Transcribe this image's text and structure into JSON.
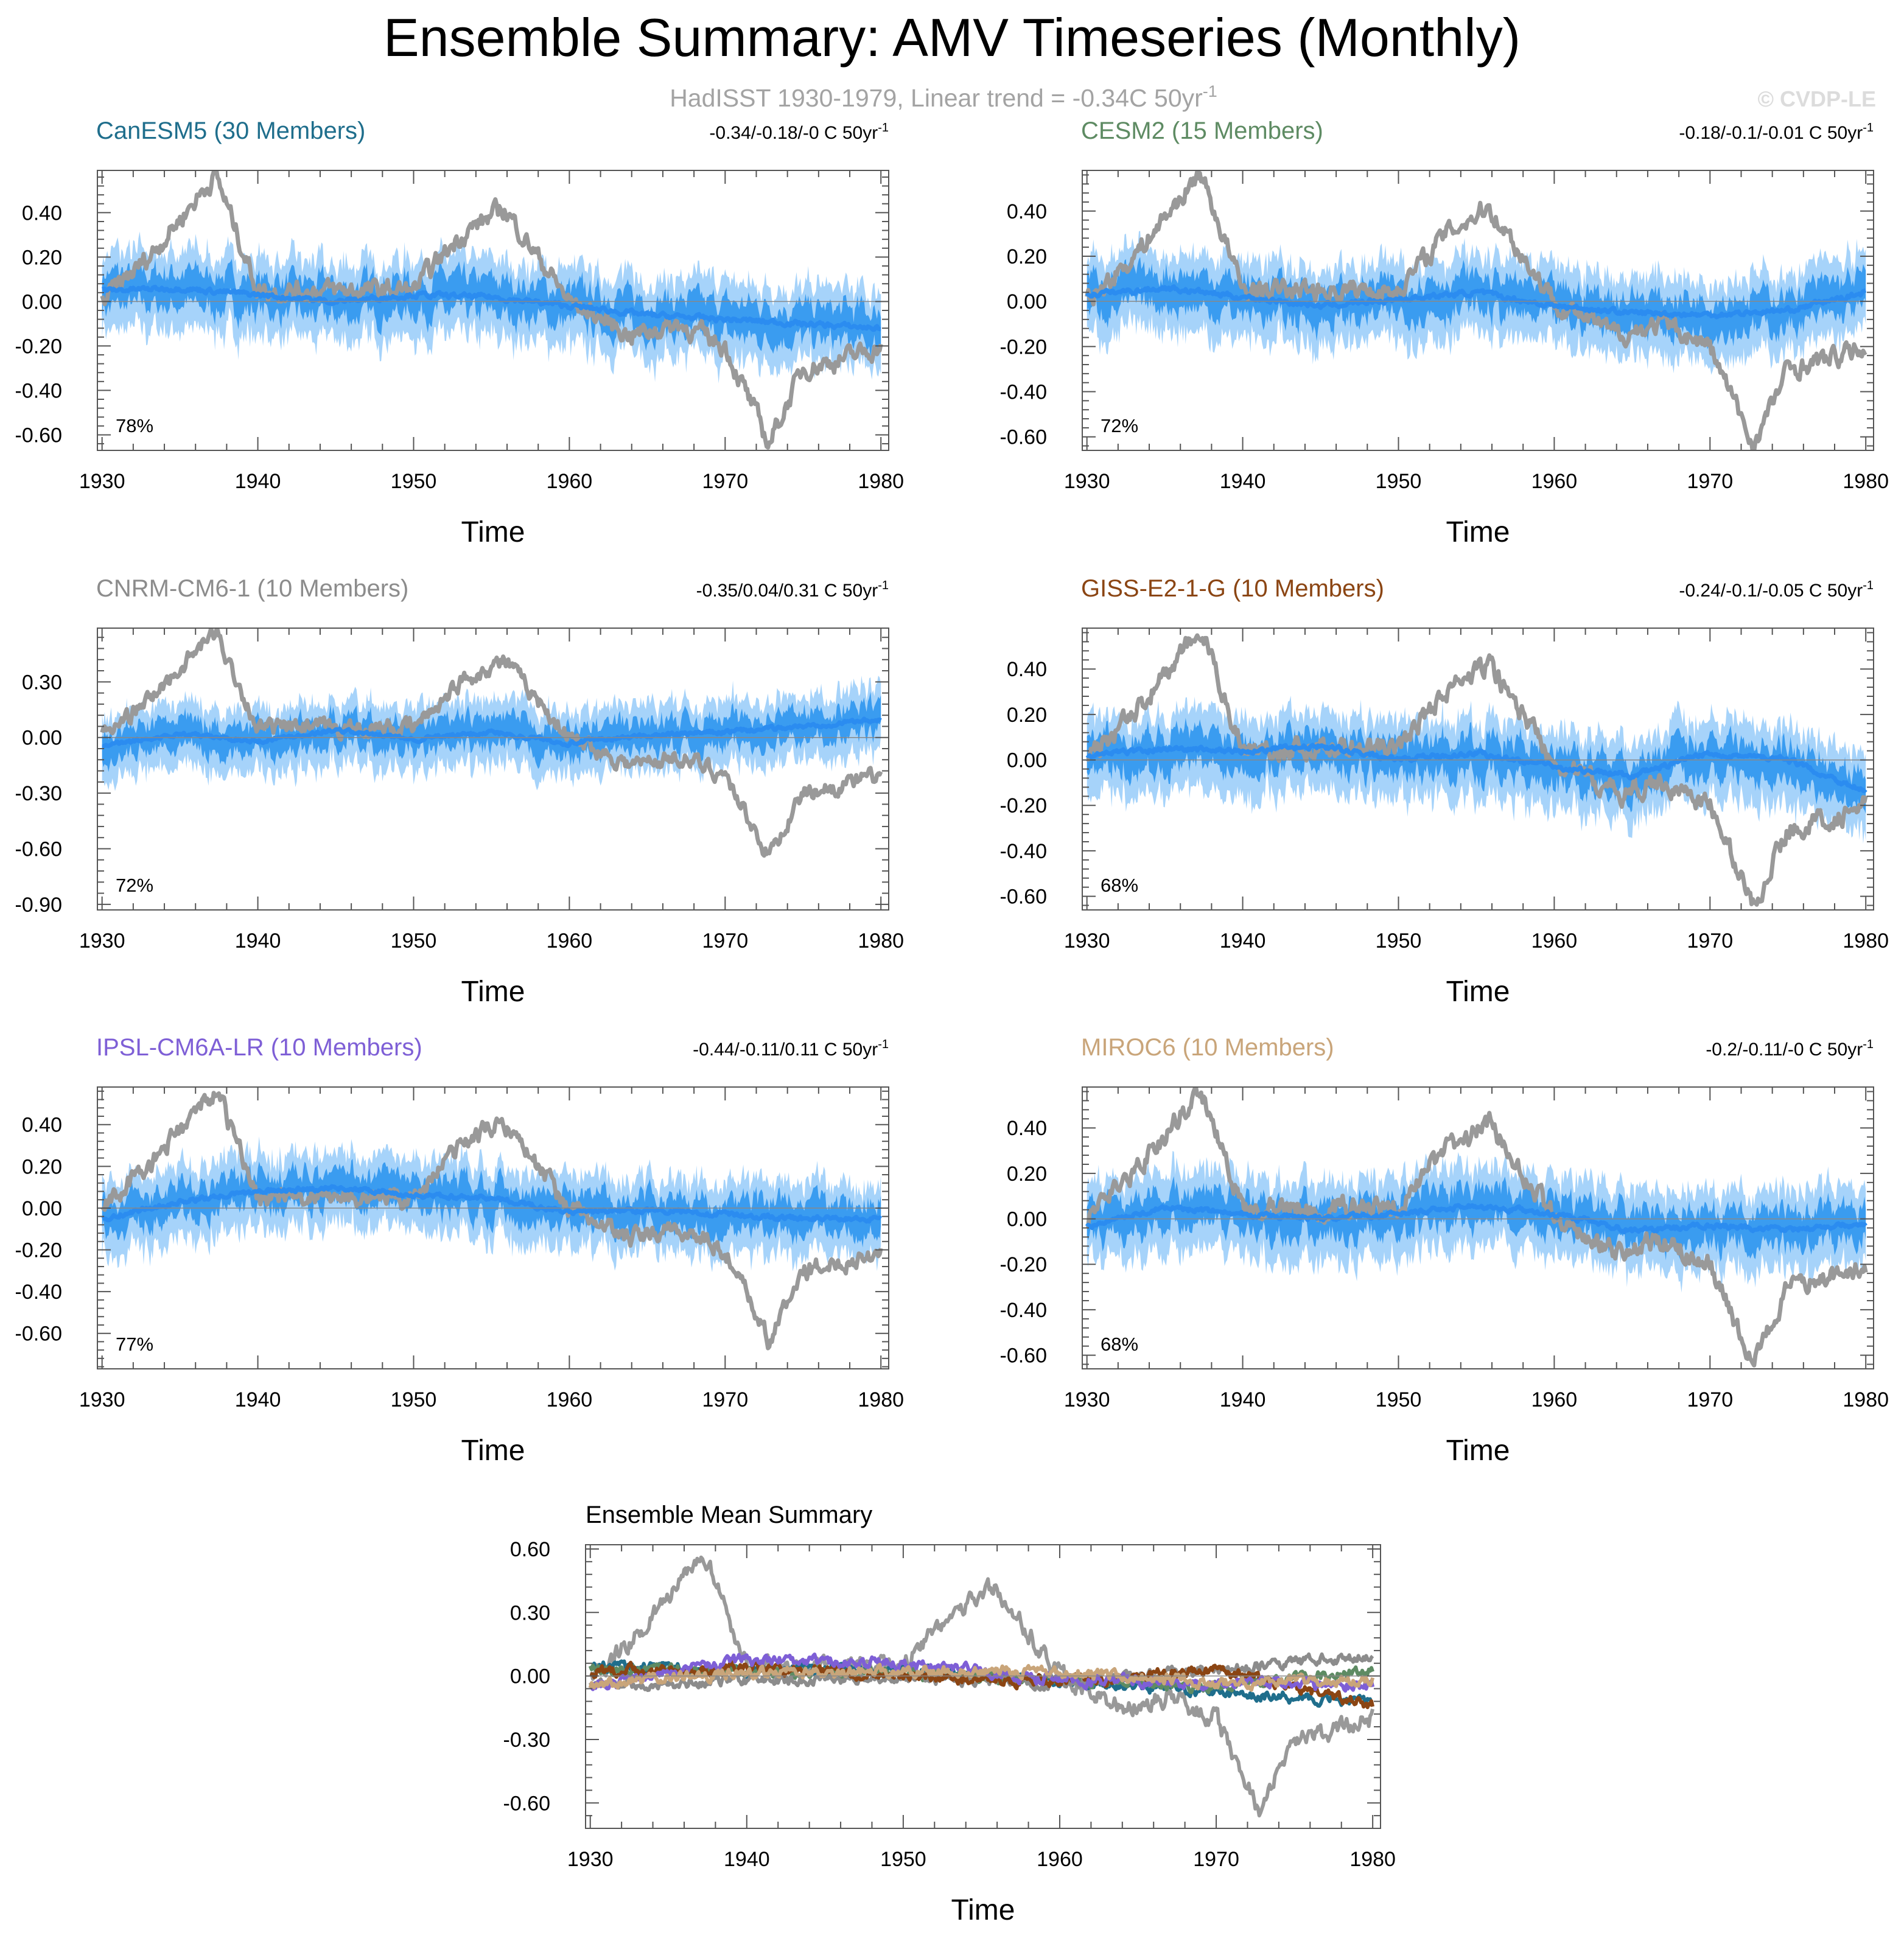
{
  "page": {
    "title": "Ensemble Summary: AMV Timeseries (Monthly)",
    "subtitle_main": "HadISST 1930-1979, Linear trend = -0.34C 50yr",
    "subtitle_sup": "-1",
    "watermark": "© CVDP-LE"
  },
  "colors": {
    "observed": "#999999",
    "band_outer": "#a6d3fa",
    "band_inner": "#3a9cf0",
    "ens_mean": "#2b8cf0",
    "zero_line": "#888888"
  },
  "chart_data": [
    {
      "type": "line",
      "title": "CanESM5 (30 Members)",
      "title_color": "#1f6e8c",
      "trend_text": "-0.34/-0.18/-0 C 50yr",
      "trend_sup": "-1",
      "pct_text": "78%",
      "xlabel": "Time",
      "ylabel": "",
      "xlim": [
        1929.7,
        1980.5
      ],
      "ylim": [
        -0.67,
        0.59
      ],
      "xticks": [
        1930,
        1940,
        1950,
        1960,
        1970,
        1980
      ],
      "yticks": [
        -0.6,
        -0.4,
        -0.2,
        0.0,
        0.2,
        0.4
      ],
      "ytick_labels": [
        "-0.60",
        "-0.40",
        "-0.20",
        "0.00",
        "0.20",
        "0.40"
      ],
      "series": [
        {
          "name": "ensemble mean",
          "x": [
            1930,
            1935,
            1940,
            1945,
            1950,
            1955,
            1960,
            1965,
            1970,
            1975,
            1980
          ],
          "values": [
            0.05,
            0.06,
            0.03,
            0.0,
            0.03,
            0.02,
            -0.02,
            -0.06,
            -0.08,
            -0.1,
            -0.12
          ]
        },
        {
          "name": "observed HadISST",
          "x": [
            1930,
            1933,
            1937.3,
            1940,
            1945,
            1950,
            1953,
            1955.8,
            1960,
            1964,
            1967,
            1970,
            1972.8,
            1975,
            1978,
            1980
          ],
          "values": [
            0.0,
            0.2,
            0.57,
            0.05,
            0.05,
            0.05,
            0.3,
            0.42,
            0.0,
            -0.15,
            -0.1,
            -0.2,
            -0.64,
            -0.3,
            -0.25,
            -0.2
          ]
        }
      ]
    },
    {
      "type": "line",
      "title": "CESM2 (15 Members)",
      "title_color": "#5e8b63",
      "trend_text": "-0.18/-0.1/-0.01 C 50yr",
      "trend_sup": "-1",
      "pct_text": "72%",
      "xlabel": "Time",
      "ylabel": "",
      "xlim": [
        1929.7,
        1980.5
      ],
      "ylim": [
        -0.66,
        0.58
      ],
      "xticks": [
        1930,
        1940,
        1950,
        1960,
        1970,
        1980
      ],
      "yticks": [
        -0.6,
        -0.4,
        -0.2,
        0.0,
        0.2,
        0.4
      ],
      "ytick_labels": [
        "-0.60",
        "-0.40",
        "-0.20",
        "0.00",
        "0.20",
        "0.40"
      ],
      "series": [
        {
          "name": "ensemble mean",
          "x": [
            1930,
            1935,
            1940,
            1945,
            1950,
            1955,
            1960,
            1965,
            1970,
            1975,
            1980
          ],
          "values": [
            0.03,
            0.06,
            0.02,
            -0.02,
            0.01,
            0.04,
            -0.02,
            -0.05,
            -0.06,
            -0.04,
            0.04
          ]
        },
        {
          "name": "observed HadISST",
          "x": [
            1930,
            1933,
            1937.3,
            1940,
            1945,
            1950,
            1953,
            1955.8,
            1960,
            1964,
            1967,
            1970,
            1972.8,
            1975,
            1978,
            1980
          ],
          "values": [
            0.0,
            0.2,
            0.57,
            0.05,
            0.05,
            0.05,
            0.3,
            0.42,
            0.0,
            -0.15,
            -0.1,
            -0.2,
            -0.64,
            -0.3,
            -0.25,
            -0.2
          ]
        }
      ]
    },
    {
      "type": "line",
      "title": "CNRM-CM6-1 (10 Members)",
      "title_color": "#8c8c8c",
      "trend_text": "-0.35/0.04/0.31 C 50yr",
      "trend_sup": "-1",
      "pct_text": "72%",
      "xlabel": "Time",
      "ylabel": "",
      "xlim": [
        1929.7,
        1980.5
      ],
      "ylim": [
        -0.93,
        0.59
      ],
      "xticks": [
        1930,
        1940,
        1950,
        1960,
        1970,
        1980
      ],
      "yticks": [
        -0.9,
        -0.6,
        -0.3,
        0.0,
        0.3
      ],
      "ytick_labels": [
        "-0.90",
        "-0.60",
        "-0.30",
        "0.00",
        "0.30"
      ],
      "series": [
        {
          "name": "ensemble mean",
          "x": [
            1930,
            1935,
            1940,
            1945,
            1950,
            1955,
            1960,
            1965,
            1970,
            1975,
            1980
          ],
          "values": [
            -0.05,
            0.02,
            -0.02,
            0.04,
            -0.01,
            0.03,
            -0.03,
            0.01,
            0.03,
            0.06,
            0.1
          ]
        },
        {
          "name": "observed HadISST",
          "x": [
            1930,
            1933,
            1937.3,
            1940,
            1945,
            1950,
            1953,
            1955.8,
            1960,
            1964,
            1967,
            1970,
            1972.8,
            1975,
            1978,
            1980
          ],
          "values": [
            0.0,
            0.2,
            0.57,
            0.05,
            0.05,
            0.05,
            0.3,
            0.42,
            0.0,
            -0.15,
            -0.1,
            -0.2,
            -0.64,
            -0.3,
            -0.25,
            -0.2
          ]
        }
      ]
    },
    {
      "type": "line",
      "title": "GISS-E2-1-G (10 Members)",
      "title_color": "#8b4513",
      "trend_text": "-0.24/-0.1/-0.05 C 50yr",
      "trend_sup": "-1",
      "pct_text": "68%",
      "xlabel": "Time",
      "ylabel": "",
      "xlim": [
        1929.7,
        1980.5
      ],
      "ylim": [
        -0.66,
        0.58
      ],
      "xticks": [
        1930,
        1940,
        1950,
        1960,
        1970,
        1980
      ],
      "yticks": [
        -0.6,
        -0.4,
        -0.2,
        0.0,
        0.2,
        0.4
      ],
      "ytick_labels": [
        "-0.60",
        "-0.40",
        "-0.20",
        "0.00",
        "0.20",
        "0.40"
      ],
      "series": [
        {
          "name": "ensemble mean",
          "x": [
            1930,
            1935,
            1940,
            1945,
            1950,
            1955,
            1960,
            1965,
            1970,
            1975,
            1980
          ],
          "values": [
            0.02,
            0.05,
            0.04,
            0.06,
            0.0,
            0.03,
            -0.03,
            -0.07,
            0.03,
            0.0,
            -0.14
          ]
        },
        {
          "name": "observed HadISST",
          "x": [
            1930,
            1933,
            1937.3,
            1940,
            1945,
            1950,
            1953,
            1955.8,
            1960,
            1964,
            1967,
            1970,
            1972.8,
            1975,
            1978,
            1980
          ],
          "values": [
            0.0,
            0.2,
            0.57,
            0.05,
            0.05,
            0.05,
            0.3,
            0.42,
            0.0,
            -0.15,
            -0.1,
            -0.2,
            -0.64,
            -0.3,
            -0.25,
            -0.2
          ]
        }
      ]
    },
    {
      "type": "line",
      "title": "IPSL-CM6A-LR (10 Members)",
      "title_color": "#7e5fd6",
      "trend_text": "-0.44/-0.11/0.11 C 50yr",
      "trend_sup": "-1",
      "pct_text": "77%",
      "xlabel": "Time",
      "ylabel": "",
      "xlim": [
        1929.7,
        1980.5
      ],
      "ylim": [
        -0.77,
        0.58
      ],
      "xticks": [
        1930,
        1940,
        1950,
        1960,
        1970,
        1980
      ],
      "yticks": [
        -0.6,
        -0.4,
        -0.2,
        0.0,
        0.2,
        0.4
      ],
      "ytick_labels": [
        "-0.60",
        "-0.40",
        "-0.20",
        "0.00",
        "0.20",
        "0.40"
      ],
      "series": [
        {
          "name": "ensemble mean",
          "x": [
            1930,
            1935,
            1940,
            1945,
            1950,
            1955,
            1960,
            1965,
            1970,
            1975,
            1980
          ],
          "values": [
            -0.05,
            0.03,
            0.08,
            0.1,
            0.06,
            0.05,
            -0.02,
            -0.01,
            -0.03,
            -0.05,
            -0.05
          ]
        },
        {
          "name": "observed HadISST",
          "x": [
            1930,
            1933,
            1937.3,
            1940,
            1945,
            1950,
            1953,
            1955.8,
            1960,
            1964,
            1967,
            1970,
            1972.8,
            1975,
            1978,
            1980
          ],
          "values": [
            0.0,
            0.2,
            0.57,
            0.05,
            0.05,
            0.05,
            0.3,
            0.42,
            0.0,
            -0.15,
            -0.1,
            -0.2,
            -0.64,
            -0.3,
            -0.25,
            -0.2
          ]
        }
      ]
    },
    {
      "type": "line",
      "title": "MIROC6 (10 Members)",
      "title_color": "#c9a57a",
      "trend_text": "-0.2/-0.11/-0 C 50yr",
      "trend_sup": "-1",
      "pct_text": "68%",
      "xlabel": "Time",
      "ylabel": "",
      "xlim": [
        1929.7,
        1980.5
      ],
      "ylim": [
        -0.66,
        0.58
      ],
      "xticks": [
        1930,
        1940,
        1950,
        1960,
        1970,
        1980
      ],
      "yticks": [
        -0.6,
        -0.4,
        -0.2,
        0.0,
        0.2,
        0.4
      ],
      "ytick_labels": [
        "-0.60",
        "-0.40",
        "-0.20",
        "0.00",
        "0.20",
        "0.40"
      ],
      "series": [
        {
          "name": "ensemble mean",
          "x": [
            1930,
            1935,
            1940,
            1945,
            1950,
            1955,
            1960,
            1965,
            1970,
            1975,
            1980
          ],
          "values": [
            -0.04,
            0.05,
            0.02,
            0.0,
            0.02,
            0.06,
            0.02,
            -0.05,
            -0.03,
            -0.05,
            -0.02
          ]
        },
        {
          "name": "observed HadISST",
          "x": [
            1930,
            1933,
            1937.3,
            1940,
            1945,
            1950,
            1953,
            1955.8,
            1960,
            1964,
            1967,
            1970,
            1972.8,
            1975,
            1978,
            1980
          ],
          "values": [
            0.0,
            0.2,
            0.57,
            0.05,
            0.05,
            0.05,
            0.3,
            0.42,
            0.0,
            -0.15,
            -0.1,
            -0.2,
            -0.64,
            -0.3,
            -0.25,
            -0.2
          ]
        }
      ]
    },
    {
      "type": "line",
      "title": "Ensemble Mean Summary",
      "title_color": "#000000",
      "xlabel": "Time",
      "ylabel": "",
      "xlim": [
        1929.7,
        1980.5
      ],
      "ylim": [
        -0.72,
        0.62
      ],
      "xticks": [
        1930,
        1940,
        1950,
        1960,
        1970,
        1980
      ],
      "yticks": [
        -0.6,
        -0.3,
        0.0,
        0.3,
        0.6
      ],
      "ytick_labels": [
        "-0.60",
        "-0.30",
        "0.00",
        "0.30",
        "0.60"
      ],
      "series": [
        {
          "name": "observed HadISST",
          "color": "#999999",
          "x": [
            1930,
            1933,
            1937.3,
            1940,
            1945,
            1950,
            1953,
            1955.8,
            1960,
            1964,
            1967,
            1970,
            1972.8,
            1975,
            1978,
            1980
          ],
          "values": [
            0.0,
            0.2,
            0.57,
            0.05,
            0.05,
            0.05,
            0.3,
            0.42,
            0.0,
            -0.15,
            -0.1,
            -0.2,
            -0.64,
            -0.3,
            -0.25,
            -0.2
          ]
        },
        {
          "name": "CanESM5",
          "color": "#1f6e8c",
          "x": [
            1930,
            1940,
            1950,
            1960,
            1970,
            1980
          ],
          "values": [
            0.05,
            0.03,
            0.03,
            -0.02,
            -0.08,
            -0.12
          ]
        },
        {
          "name": "CESM2",
          "color": "#5e8b63",
          "x": [
            1930,
            1940,
            1950,
            1960,
            1970,
            1980
          ],
          "values": [
            0.03,
            0.02,
            0.01,
            -0.02,
            -0.06,
            0.04
          ]
        },
        {
          "name": "CNRM-CM6-1",
          "color": "#8c8c8c",
          "x": [
            1930,
            1940,
            1950,
            1960,
            1970,
            1980
          ],
          "values": [
            -0.05,
            -0.02,
            -0.01,
            -0.03,
            0.03,
            0.1
          ]
        },
        {
          "name": "GISS-E2-1-G",
          "color": "#8b4513",
          "x": [
            1930,
            1940,
            1950,
            1960,
            1970,
            1980
          ],
          "values": [
            0.02,
            0.04,
            0.0,
            -0.03,
            0.03,
            -0.14
          ]
        },
        {
          "name": "IPSL-CM6A-LR",
          "color": "#7e5fd6",
          "x": [
            1930,
            1940,
            1950,
            1960,
            1970,
            1980
          ],
          "values": [
            -0.05,
            0.08,
            0.06,
            -0.02,
            -0.03,
            -0.05
          ]
        },
        {
          "name": "MIROC6",
          "color": "#c9a57a",
          "x": [
            1930,
            1940,
            1950,
            1960,
            1970,
            1980
          ],
          "values": [
            -0.04,
            0.02,
            0.02,
            0.02,
            -0.03,
            -0.02
          ]
        }
      ]
    }
  ]
}
